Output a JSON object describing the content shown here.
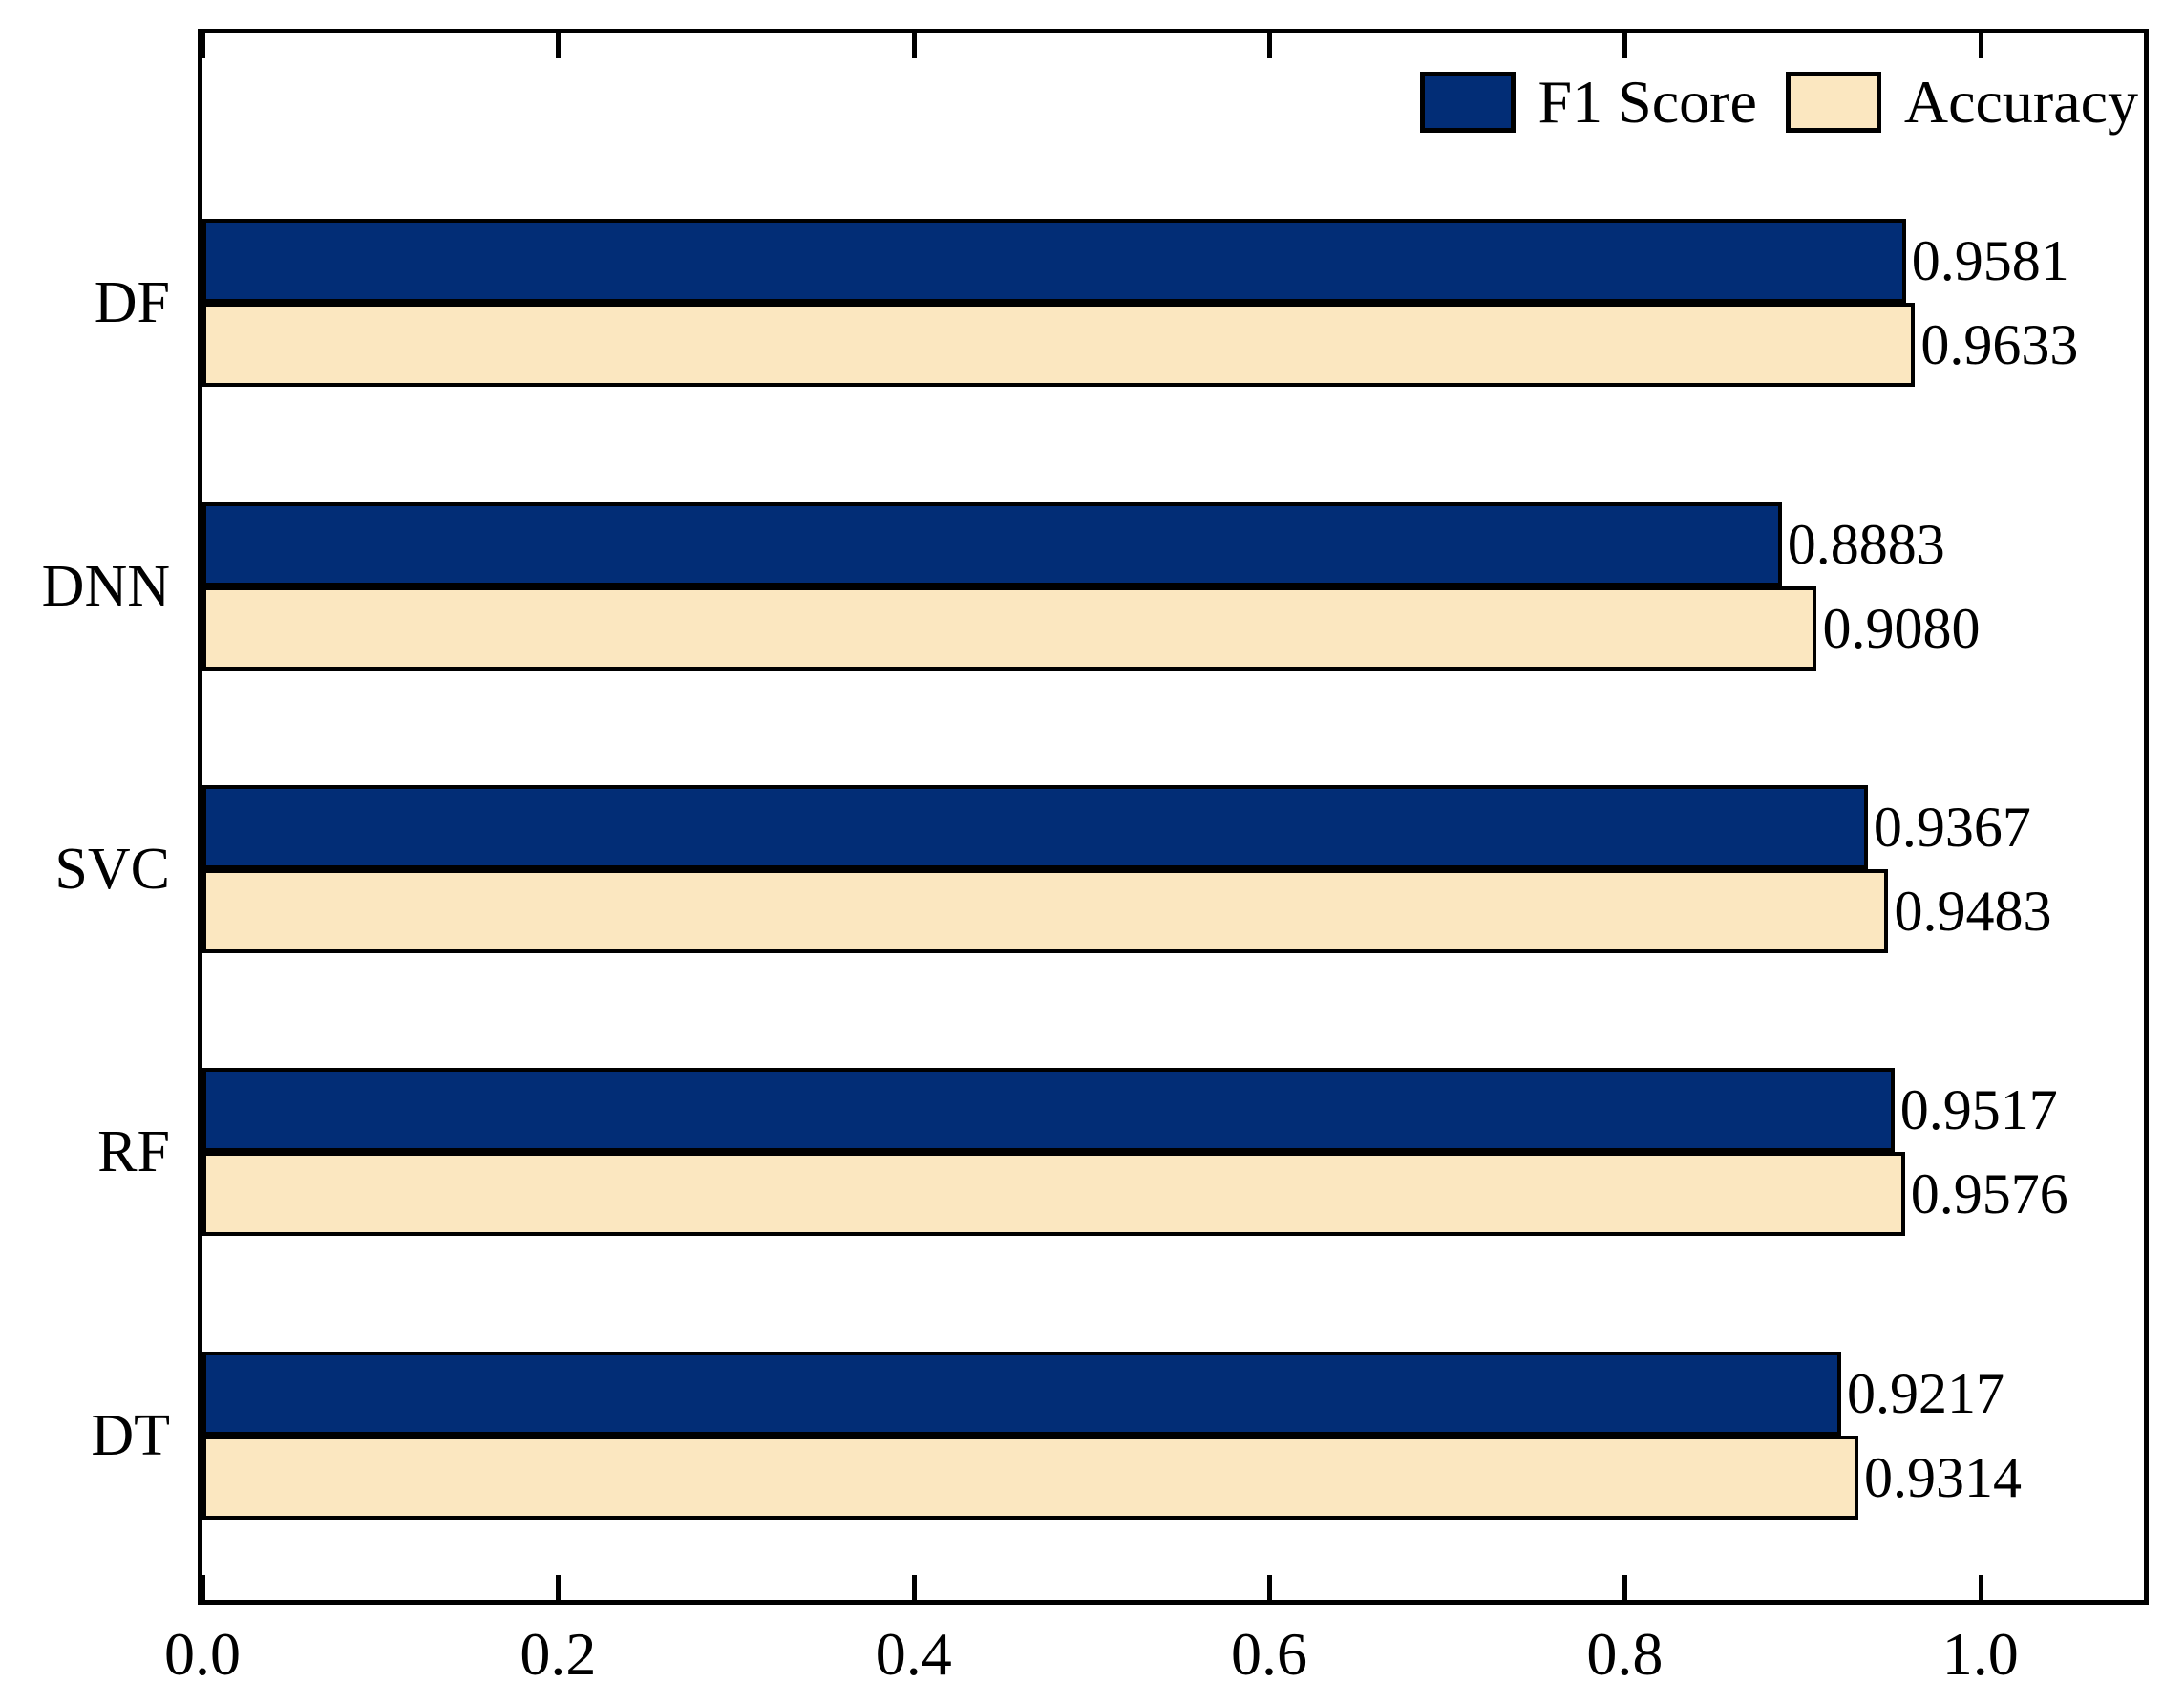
{
  "figure": {
    "background": "#ffffff"
  },
  "chart_data": {
    "type": "bar",
    "orientation": "horizontal",
    "title": "",
    "xlabel": "",
    "ylabel": "",
    "categories": [
      "DF",
      "DNN",
      "SVC",
      "RF",
      "DT"
    ],
    "series": [
      {
        "name": "F1 Score",
        "color": "#022d76",
        "values": [
          0.9581,
          0.8883,
          0.9367,
          0.9517,
          0.9217
        ],
        "labels": [
          "0.9581",
          "0.8883",
          "0.9367",
          "0.9517",
          "0.9217"
        ]
      },
      {
        "name": "Accuracy",
        "color": "#fbe7c0",
        "values": [
          0.9633,
          0.908,
          0.9483,
          0.9576,
          0.9314
        ],
        "labels": [
          "0.9633",
          "0.9080",
          "0.9483",
          "0.9576",
          "0.9314"
        ]
      }
    ],
    "x_ticks": [
      0.0,
      0.2,
      0.4,
      0.6,
      0.8,
      1.0
    ],
    "x_tick_labels": [
      "0.0",
      "0.2",
      "0.4",
      "0.6",
      "0.8",
      "1.0"
    ],
    "xlim": [
      0,
      1.092
    ],
    "grid": false,
    "legend_position": "top-right",
    "bar_edge_color": "#000000",
    "text_color": "#000000"
  }
}
